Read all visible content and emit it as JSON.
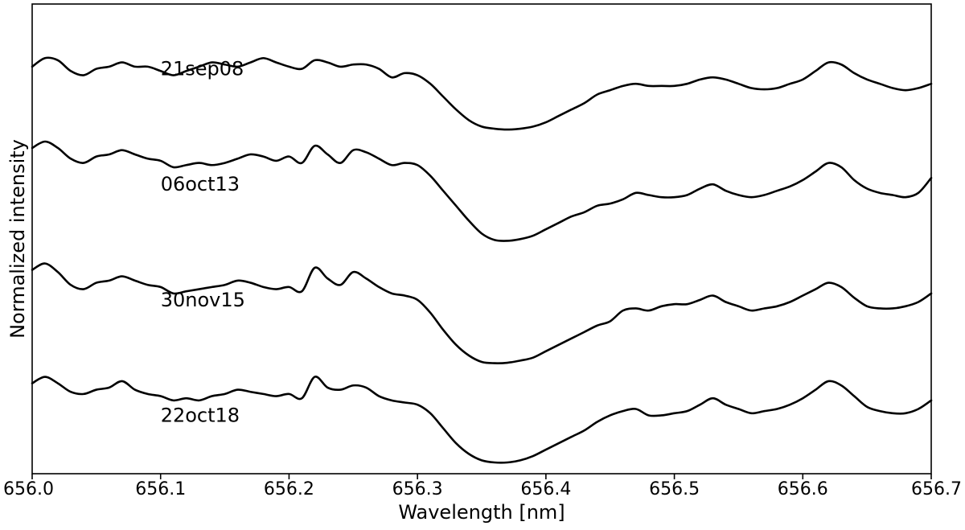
{
  "chart_data": {
    "type": "line",
    "xlabel": "Wavelength [nm]",
    "ylabel": "Normalized intensity",
    "xlim": [
      656.0,
      656.7
    ],
    "ylim": [
      0,
      1
    ],
    "xticks": [
      656.0,
      656.1,
      656.2,
      656.3,
      656.4,
      656.5,
      656.6,
      656.7
    ],
    "xtick_labels": [
      "656.0",
      "656.1",
      "656.2",
      "656.3",
      "656.4",
      "656.5",
      "656.6",
      "656.7"
    ],
    "yticks_visible": false,
    "grid": false,
    "line_color": "#000000",
    "series": [
      {
        "name": "21sep08",
        "label_x": 656.1,
        "label_y": 0.905,
        "x": [
          656.0,
          656.01,
          656.02,
          656.03,
          656.04,
          656.05,
          656.06,
          656.07,
          656.08,
          656.09,
          656.1,
          656.11,
          656.12,
          656.13,
          656.14,
          656.15,
          656.16,
          656.17,
          656.18,
          656.19,
          656.2,
          656.21,
          656.22,
          656.23,
          656.24,
          656.25,
          656.26,
          656.27,
          656.28,
          656.29,
          656.3,
          656.31,
          656.32,
          656.33,
          656.34,
          656.35,
          656.36,
          656.37,
          656.38,
          656.39,
          656.4,
          656.41,
          656.42,
          656.43,
          656.44,
          656.45,
          656.46,
          656.47,
          656.48,
          656.49,
          656.5,
          656.51,
          656.52,
          656.53,
          656.54,
          656.55,
          656.56,
          656.57,
          656.58,
          656.59,
          656.6,
          656.61,
          656.62,
          656.63,
          656.64,
          656.65,
          656.66,
          656.67,
          656.68,
          656.69,
          656.7
        ],
        "y": [
          0.925,
          0.945,
          0.94,
          0.915,
          0.905,
          0.92,
          0.925,
          0.935,
          0.925,
          0.925,
          0.915,
          0.905,
          0.915,
          0.925,
          0.935,
          0.93,
          0.925,
          0.935,
          0.945,
          0.935,
          0.925,
          0.92,
          0.94,
          0.935,
          0.925,
          0.93,
          0.93,
          0.92,
          0.9,
          0.91,
          0.905,
          0.885,
          0.855,
          0.825,
          0.8,
          0.785,
          0.78,
          0.778,
          0.78,
          0.785,
          0.795,
          0.81,
          0.825,
          0.84,
          0.86,
          0.87,
          0.88,
          0.885,
          0.88,
          0.88,
          0.88,
          0.885,
          0.895,
          0.9,
          0.895,
          0.885,
          0.875,
          0.872,
          0.875,
          0.885,
          0.895,
          0.915,
          0.935,
          0.93,
          0.91,
          0.895,
          0.885,
          0.875,
          0.87,
          0.875,
          0.885
        ]
      },
      {
        "name": "06oct13",
        "label_x": 656.1,
        "label_y": 0.635,
        "x": [
          656.0,
          656.01,
          656.02,
          656.03,
          656.04,
          656.05,
          656.06,
          656.07,
          656.08,
          656.09,
          656.1,
          656.11,
          656.12,
          656.13,
          656.14,
          656.15,
          656.16,
          656.17,
          656.18,
          656.19,
          656.2,
          656.21,
          656.22,
          656.23,
          656.24,
          656.25,
          656.26,
          656.27,
          656.28,
          656.29,
          656.3,
          656.31,
          656.32,
          656.33,
          656.34,
          656.35,
          656.36,
          656.37,
          656.38,
          656.39,
          656.4,
          656.41,
          656.42,
          656.43,
          656.44,
          656.45,
          656.46,
          656.47,
          656.48,
          656.49,
          656.5,
          656.51,
          656.52,
          656.53,
          656.54,
          656.55,
          656.56,
          656.57,
          656.58,
          656.59,
          656.6,
          656.61,
          656.62,
          656.63,
          656.64,
          656.65,
          656.66,
          656.67,
          656.68,
          656.69,
          656.7
        ],
        "y": [
          0.735,
          0.75,
          0.735,
          0.71,
          0.7,
          0.715,
          0.72,
          0.73,
          0.72,
          0.71,
          0.705,
          0.69,
          0.695,
          0.7,
          0.695,
          0.7,
          0.71,
          0.72,
          0.715,
          0.705,
          0.715,
          0.7,
          0.74,
          0.72,
          0.7,
          0.73,
          0.725,
          0.71,
          0.695,
          0.7,
          0.695,
          0.67,
          0.635,
          0.6,
          0.565,
          0.535,
          0.52,
          0.518,
          0.522,
          0.53,
          0.545,
          0.56,
          0.575,
          0.585,
          0.6,
          0.605,
          0.615,
          0.63,
          0.625,
          0.62,
          0.62,
          0.625,
          0.64,
          0.65,
          0.635,
          0.625,
          0.62,
          0.625,
          0.635,
          0.645,
          0.66,
          0.68,
          0.7,
          0.69,
          0.66,
          0.64,
          0.63,
          0.625,
          0.62,
          0.63,
          0.665
        ]
      },
      {
        "name": "30nov15",
        "label_x": 656.1,
        "label_y": 0.365,
        "x": [
          656.0,
          656.01,
          656.02,
          656.03,
          656.04,
          656.05,
          656.06,
          656.07,
          656.08,
          656.09,
          656.1,
          656.11,
          656.12,
          656.13,
          656.14,
          656.15,
          656.16,
          656.17,
          656.18,
          656.19,
          656.2,
          656.21,
          656.22,
          656.23,
          656.24,
          656.25,
          656.26,
          656.27,
          656.28,
          656.29,
          656.3,
          656.31,
          656.32,
          656.33,
          656.34,
          656.35,
          656.36,
          656.37,
          656.38,
          656.39,
          656.4,
          656.41,
          656.42,
          656.43,
          656.44,
          656.45,
          656.46,
          656.47,
          656.48,
          656.49,
          656.5,
          656.51,
          656.52,
          656.53,
          656.54,
          656.55,
          656.56,
          656.57,
          656.58,
          656.59,
          656.6,
          656.61,
          656.62,
          656.63,
          656.64,
          656.65,
          656.66,
          656.67,
          656.68,
          656.69,
          656.7
        ],
        "y": [
          0.45,
          0.465,
          0.445,
          0.415,
          0.405,
          0.42,
          0.425,
          0.435,
          0.425,
          0.415,
          0.41,
          0.395,
          0.4,
          0.405,
          0.41,
          0.415,
          0.425,
          0.42,
          0.41,
          0.405,
          0.41,
          0.4,
          0.455,
          0.43,
          0.415,
          0.445,
          0.43,
          0.41,
          0.395,
          0.39,
          0.38,
          0.35,
          0.31,
          0.275,
          0.25,
          0.235,
          0.232,
          0.233,
          0.238,
          0.245,
          0.26,
          0.275,
          0.29,
          0.305,
          0.32,
          0.33,
          0.355,
          0.36,
          0.355,
          0.365,
          0.37,
          0.37,
          0.38,
          0.39,
          0.375,
          0.365,
          0.355,
          0.36,
          0.365,
          0.375,
          0.39,
          0.405,
          0.42,
          0.41,
          0.385,
          0.365,
          0.36,
          0.36,
          0.365,
          0.375,
          0.395
        ]
      },
      {
        "name": "22oct18",
        "label_x": 656.1,
        "label_y": 0.095,
        "x": [
          656.0,
          656.01,
          656.02,
          656.03,
          656.04,
          656.05,
          656.06,
          656.07,
          656.08,
          656.09,
          656.1,
          656.11,
          656.12,
          656.13,
          656.14,
          656.15,
          656.16,
          656.17,
          656.18,
          656.19,
          656.2,
          656.21,
          656.22,
          656.23,
          656.24,
          656.25,
          656.26,
          656.27,
          656.28,
          656.29,
          656.3,
          656.31,
          656.32,
          656.33,
          656.34,
          656.35,
          656.36,
          656.37,
          656.38,
          656.39,
          656.4,
          656.41,
          656.42,
          656.43,
          656.44,
          656.45,
          656.46,
          656.47,
          656.48,
          656.49,
          656.5,
          656.51,
          656.52,
          656.53,
          656.54,
          656.55,
          656.56,
          656.57,
          656.58,
          656.59,
          656.6,
          656.61,
          656.62,
          656.63,
          656.64,
          656.65,
          656.66,
          656.67,
          656.68,
          656.69,
          656.7
        ],
        "y": [
          0.185,
          0.2,
          0.185,
          0.165,
          0.16,
          0.17,
          0.175,
          0.19,
          0.17,
          0.16,
          0.155,
          0.145,
          0.15,
          0.145,
          0.155,
          0.16,
          0.17,
          0.165,
          0.16,
          0.155,
          0.16,
          0.15,
          0.2,
          0.175,
          0.17,
          0.18,
          0.175,
          0.155,
          0.145,
          0.14,
          0.135,
          0.115,
          0.08,
          0.045,
          0.02,
          0.005,
          0.0,
          0.0,
          0.005,
          0.015,
          0.03,
          0.045,
          0.06,
          0.075,
          0.095,
          0.11,
          0.12,
          0.125,
          0.11,
          0.11,
          0.115,
          0.12,
          0.135,
          0.15,
          0.135,
          0.125,
          0.115,
          0.12,
          0.125,
          0.135,
          0.15,
          0.17,
          0.19,
          0.18,
          0.155,
          0.13,
          0.12,
          0.115,
          0.115,
          0.125,
          0.145
        ]
      }
    ]
  }
}
